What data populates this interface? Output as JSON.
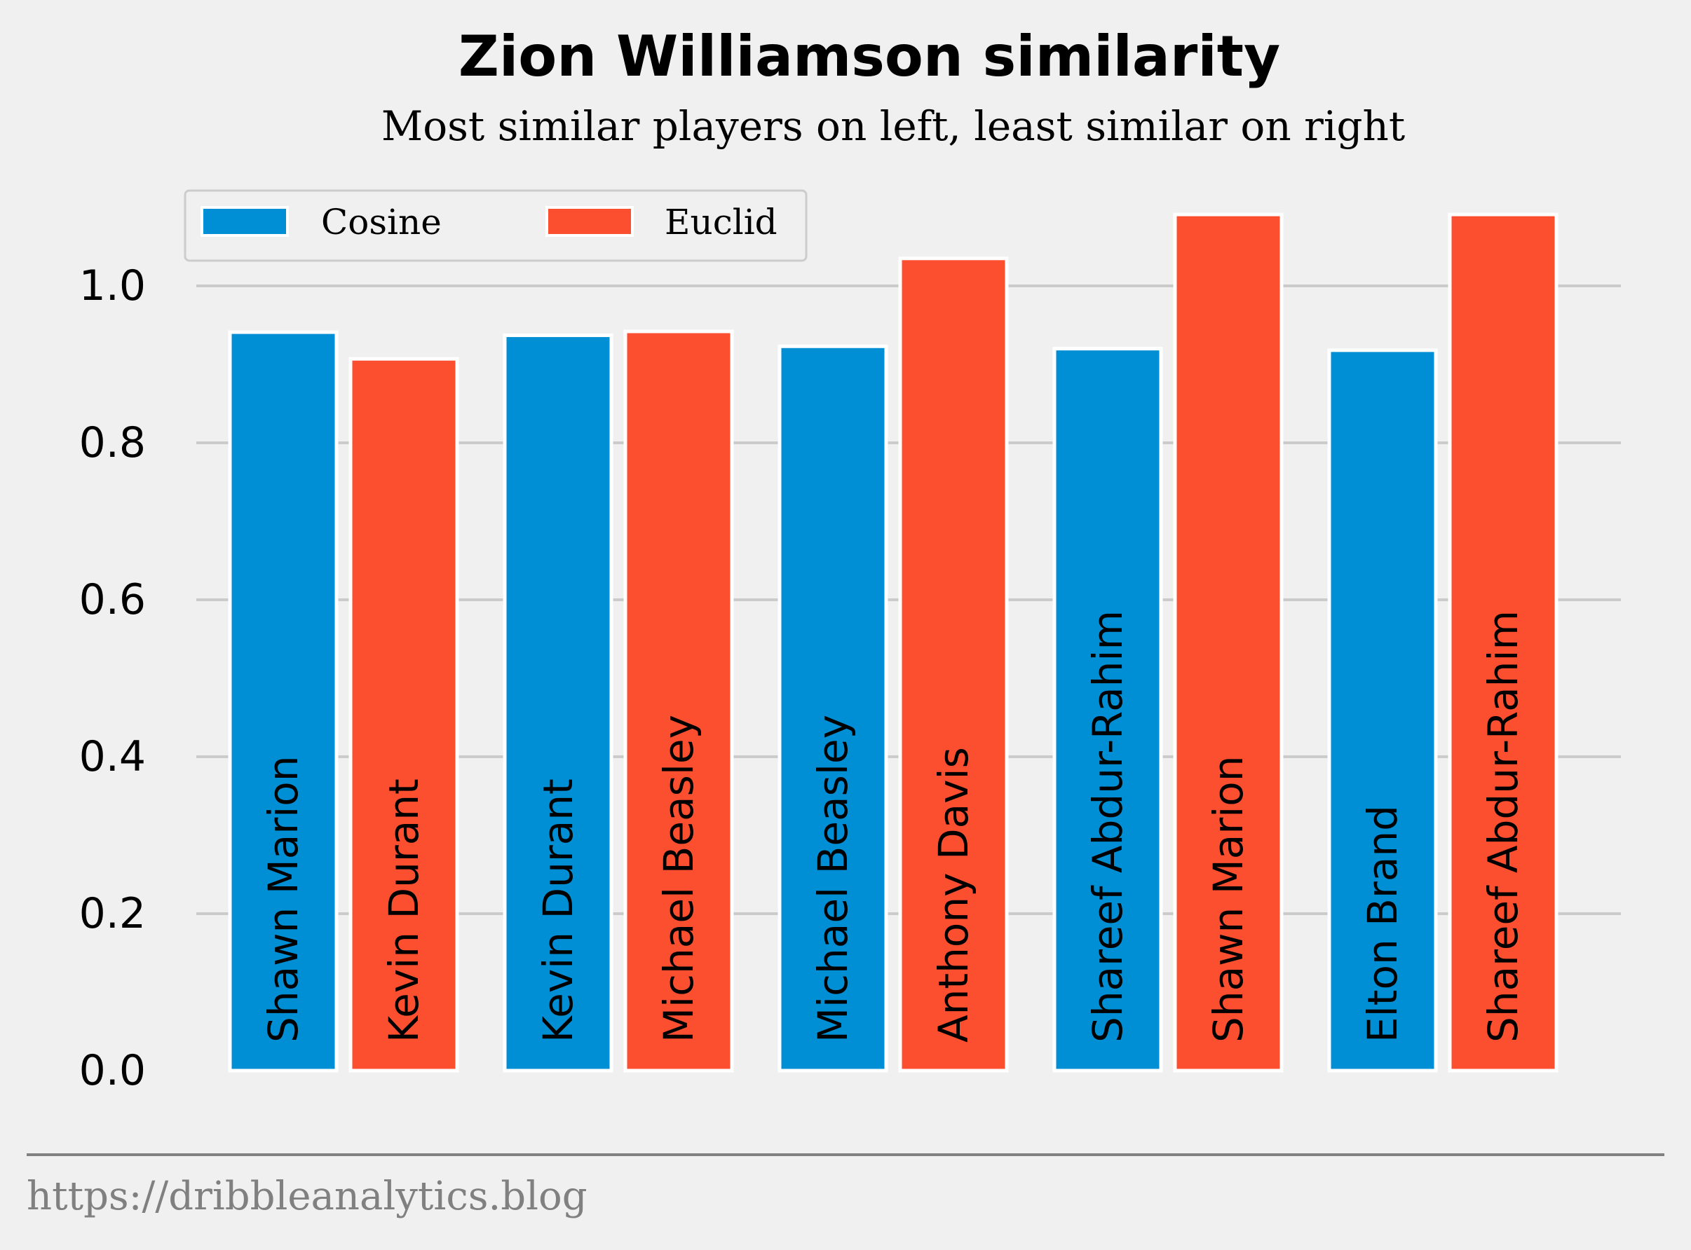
{
  "chart_data": {
    "type": "bar",
    "title": "Zion Williamson similarity",
    "subtitle": "Most similar players on left, least similar on right",
    "xlabel": "",
    "ylabel": "",
    "ylim": [
      0,
      1.1
    ],
    "yticks": [
      "0.0",
      "0.2",
      "0.4",
      "0.6",
      "0.8",
      "1.0"
    ],
    "grid": true,
    "legend_position": "top-left",
    "series": [
      {
        "name": "Cosine",
        "color": "#008fd5",
        "values": [
          0.941,
          0.937,
          0.923,
          0.92,
          0.918
        ],
        "labels": [
          "Shawn Marion",
          "Kevin Durant",
          "Michael Beasley",
          "Shareef Abdur-Rahim",
          "Elton Brand"
        ]
      },
      {
        "name": "Euclid",
        "color": "#fc4f30",
        "values": [
          0.907,
          0.942,
          1.035,
          1.091,
          1.091
        ],
        "labels": [
          "Kevin Durant",
          "Michael Beasley",
          "Anthony Davis",
          "Shawn Marion",
          "Shareef Abdur-Rahim"
        ]
      }
    ]
  },
  "footer": "https://dribbleanalytics.blog"
}
